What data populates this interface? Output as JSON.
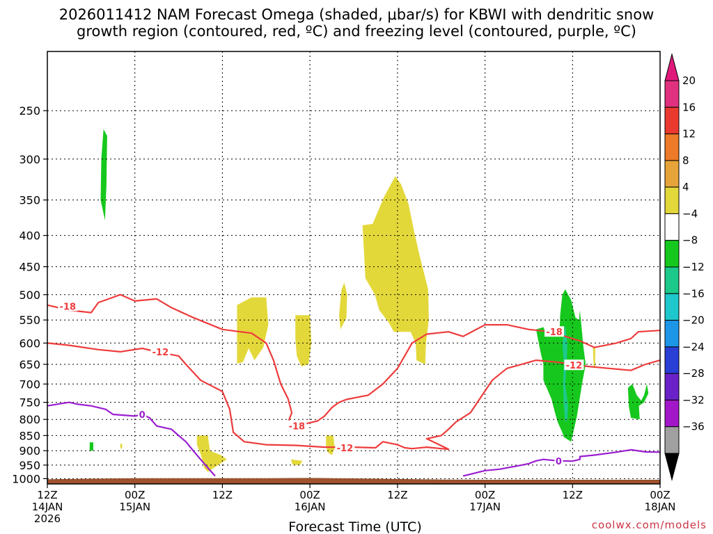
{
  "title": {
    "line1": "2026011412 NAM Forecast Omega (shaded, μbar/s) for KBWI with dendritic snow",
    "line2": "growth region (contoured, red, ºC) and freezing level (contoured, purple, ºC)"
  },
  "credit": "coolwx.com/models",
  "chart_data": {
    "type": "heatmap",
    "xlabel": "Forecast Time (UTC)",
    "y_axis": {
      "scale": "log-pressure",
      "inverted": true,
      "ticks": [
        250,
        300,
        350,
        400,
        450,
        500,
        550,
        600,
        650,
        700,
        750,
        800,
        850,
        900,
        950,
        1000
      ],
      "range": [
        200,
        1020
      ]
    },
    "x_axis": {
      "range_hours": [
        0,
        84
      ],
      "ticks": [
        {
          "hour": 0,
          "lines": [
            "12Z",
            "14JAN",
            "2026"
          ]
        },
        {
          "hour": 12,
          "lines": [
            "00Z",
            "15JAN"
          ]
        },
        {
          "hour": 24,
          "lines": [
            "12Z"
          ]
        },
        {
          "hour": 36,
          "lines": [
            "00Z",
            "16JAN"
          ]
        },
        {
          "hour": 48,
          "lines": [
            "12Z"
          ]
        },
        {
          "hour": 60,
          "lines": [
            "00Z",
            "17JAN"
          ]
        },
        {
          "hour": 72,
          "lines": [
            "12Z"
          ]
        },
        {
          "hour": 84,
          "lines": [
            "00Z",
            "18JAN"
          ]
        }
      ]
    },
    "grid": true,
    "colorbar": {
      "placement": "right",
      "levels": [
        {
          "label": "20",
          "color": "#e0317f"
        },
        {
          "label": "16",
          "color": "#ea3a30"
        },
        {
          "label": "12",
          "color": "#ec7a28"
        },
        {
          "label": "8",
          "color": "#e5a33a"
        },
        {
          "label": "4",
          "color": "#e3d83a"
        },
        {
          "label": "−4",
          "color": "#ffffff"
        },
        {
          "label": "−8",
          "color": "#16c81d"
        },
        {
          "label": "−12",
          "color": "#1dc98a"
        },
        {
          "label": "−16",
          "color": "#1ec7cc"
        },
        {
          "label": "−20",
          "color": "#1e96e8"
        },
        {
          "label": "−24",
          "color": "#2a3fd6"
        },
        {
          "label": "−28",
          "color": "#6a22c8"
        },
        {
          "label": "−32",
          "color": "#a218c8"
        },
        {
          "label": "−36",
          "color": "#a0a0a0"
        }
      ],
      "over_color": "#e01a7a",
      "under_color": "#000000"
    },
    "terrain_color": "#a0522d",
    "contours": [
      {
        "label": "-18",
        "color": "#ee3b3b",
        "points": [
          [
            0,
            520
          ],
          [
            3,
            530
          ],
          [
            6,
            535
          ],
          [
            7,
            515
          ],
          [
            9,
            505
          ],
          [
            10,
            500
          ],
          [
            12,
            512
          ],
          [
            15,
            508
          ],
          [
            17,
            525
          ],
          [
            20,
            545
          ],
          [
            24,
            570
          ],
          [
            28,
            578
          ],
          [
            30,
            600
          ],
          [
            31,
            640
          ],
          [
            32,
            700
          ],
          [
            33,
            740
          ],
          [
            33.5,
            780
          ],
          [
            33,
            810
          ],
          [
            35,
            815
          ],
          [
            37,
            805
          ],
          [
            38,
            790
          ],
          [
            39,
            765
          ],
          [
            40,
            750
          ],
          [
            41,
            742
          ],
          [
            44,
            730
          ],
          [
            46,
            700
          ],
          [
            48,
            660
          ],
          [
            50,
            600
          ],
          [
            52,
            580
          ],
          [
            55,
            575
          ],
          [
            57,
            585
          ],
          [
            60,
            560
          ],
          [
            63,
            560
          ],
          [
            66,
            570
          ],
          [
            69,
            575
          ],
          [
            71,
            585
          ],
          [
            73,
            595
          ],
          [
            75,
            610
          ],
          [
            78,
            600
          ],
          [
            80,
            590
          ],
          [
            81,
            575
          ],
          [
            84,
            572
          ]
        ]
      },
      {
        "label": "-12",
        "color": "#ee3b3b",
        "points": [
          [
            0,
            600
          ],
          [
            3,
            605
          ],
          [
            7,
            615
          ],
          [
            10,
            620
          ],
          [
            13,
            612
          ],
          [
            15,
            620
          ],
          [
            18,
            630
          ],
          [
            19,
            650
          ],
          [
            21,
            690
          ],
          [
            24,
            720
          ],
          [
            25,
            770
          ],
          [
            25.5,
            840
          ],
          [
            27,
            870
          ],
          [
            30,
            880
          ],
          [
            34,
            882
          ],
          [
            38,
            888
          ],
          [
            42,
            888
          ],
          [
            45,
            890
          ],
          [
            46,
            870
          ],
          [
            48,
            880
          ],
          [
            49,
            890
          ],
          [
            50,
            893
          ],
          [
            52,
            888
          ],
          [
            54,
            893
          ],
          [
            55,
            895
          ],
          [
            52,
            860
          ],
          [
            54,
            850
          ],
          [
            55,
            830
          ],
          [
            56,
            808
          ],
          [
            58,
            780
          ],
          [
            61,
            690
          ],
          [
            63,
            660
          ],
          [
            65,
            650
          ],
          [
            67,
            640
          ],
          [
            70,
            645
          ],
          [
            72,
            650
          ],
          [
            74,
            655
          ],
          [
            77,
            660
          ],
          [
            80,
            665
          ],
          [
            82,
            650
          ],
          [
            84,
            640
          ]
        ]
      },
      {
        "label": "0",
        "color": "#9a1ed0",
        "points": [
          [
            0,
            760
          ],
          [
            3,
            750
          ],
          [
            4,
            755
          ],
          [
            6,
            760
          ],
          [
            8,
            770
          ],
          [
            9,
            785
          ],
          [
            12,
            790
          ],
          [
            13,
            785
          ],
          [
            14,
            795
          ],
          [
            15,
            820
          ],
          [
            17,
            830
          ],
          [
            18,
            850
          ],
          [
            19,
            870
          ],
          [
            20,
            900
          ],
          [
            21,
            930
          ],
          [
            22,
            960
          ],
          [
            23,
            990
          ]
        ]
      },
      {
        "label": "0",
        "color": "#9a1ed0",
        "points": [
          [
            57,
            990
          ],
          [
            60,
            970
          ],
          [
            62,
            965
          ],
          [
            64,
            955
          ],
          [
            65,
            950
          ],
          [
            66,
            945
          ],
          [
            67,
            935
          ],
          [
            68,
            930
          ],
          [
            70,
            935
          ],
          [
            72,
            936
          ],
          [
            73,
            930
          ],
          [
            73,
            920
          ],
          [
            75,
            915
          ],
          [
            78,
            905
          ],
          [
            80,
            897
          ],
          [
            82,
            904
          ],
          [
            84,
            905
          ]
        ]
      }
    ]
  }
}
